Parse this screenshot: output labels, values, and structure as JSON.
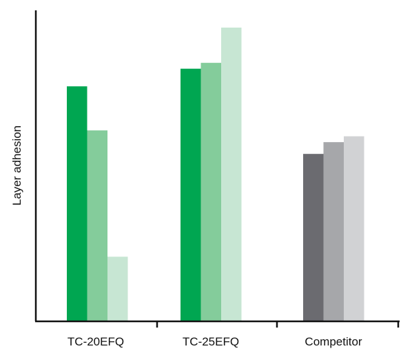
{
  "chart_data": {
    "type": "bar",
    "title": "",
    "xlabel": "",
    "ylabel": "Layer adhesion",
    "categories": [
      "TC-20EFQ",
      "TC-25EFQ",
      "Competitor"
    ],
    "bars_per_category": 3,
    "values": [
      [
        0.8,
        0.65,
        0.22
      ],
      [
        0.86,
        0.88,
        1.0
      ],
      [
        0.57,
        0.61,
        0.63
      ]
    ],
    "colors": [
      [
        "#00a651",
        "#84cc9b",
        "#c7e6d3"
      ],
      [
        "#00a651",
        "#84cc9b",
        "#c7e6d3"
      ],
      [
        "#6b6b70",
        "#a6a7aa",
        "#d1d2d4"
      ]
    ],
    "ylim": [
      0,
      1.0
    ],
    "grid": false,
    "legend": "none",
    "y_ticks_shown": false
  }
}
